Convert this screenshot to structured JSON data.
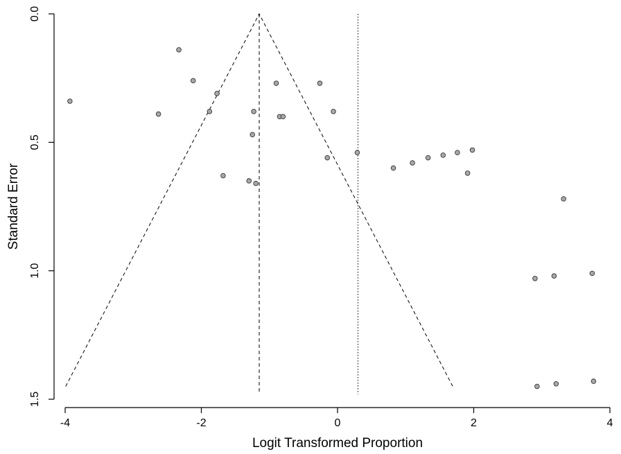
{
  "chart_data": {
    "type": "scatter",
    "title": "",
    "xlabel": "Logit Transformed Proportion",
    "ylabel": "Standard Error",
    "xlim": [
      -4,
      4
    ],
    "ylim": [
      0,
      1.5
    ],
    "y_reversed": true,
    "x_ticks": [
      -4,
      -2,
      0,
      2,
      4
    ],
    "x_tick_labels": [
      "-4",
      "-2",
      "0",
      "2",
      "4"
    ],
    "y_ticks": [
      0,
      0.5,
      1,
      1.5
    ],
    "y_tick_labels": [
      "0.0",
      "0.5",
      "1.0",
      "1.5"
    ],
    "grid": false,
    "legend": "none",
    "pooled_estimate": -1.15,
    "reference_line": 0.3,
    "funnel_max_se": 1.45,
    "points": [
      {
        "x": -3.93,
        "y": 0.34
      },
      {
        "x": -2.33,
        "y": 0.14
      },
      {
        "x": -2.63,
        "y": 0.39
      },
      {
        "x": -2.12,
        "y": 0.26
      },
      {
        "x": -1.77,
        "y": 0.31
      },
      {
        "x": -1.88,
        "y": 0.38
      },
      {
        "x": -1.68,
        "y": 0.63
      },
      {
        "x": -1.23,
        "y": 0.38
      },
      {
        "x": -1.25,
        "y": 0.47
      },
      {
        "x": -1.3,
        "y": 0.65
      },
      {
        "x": -1.2,
        "y": 0.66
      },
      {
        "x": -0.9,
        "y": 0.27
      },
      {
        "x": -0.85,
        "y": 0.4
      },
      {
        "x": -0.8,
        "y": 0.4
      },
      {
        "x": -0.26,
        "y": 0.27
      },
      {
        "x": -0.06,
        "y": 0.38
      },
      {
        "x": -0.15,
        "y": 0.56
      },
      {
        "x": 0.29,
        "y": 0.54
      },
      {
        "x": 0.82,
        "y": 0.6
      },
      {
        "x": 1.1,
        "y": 0.58
      },
      {
        "x": 1.33,
        "y": 0.56
      },
      {
        "x": 1.55,
        "y": 0.55
      },
      {
        "x": 1.76,
        "y": 0.54
      },
      {
        "x": 1.98,
        "y": 0.53
      },
      {
        "x": 1.91,
        "y": 0.62
      },
      {
        "x": 3.32,
        "y": 0.72
      },
      {
        "x": 2.9,
        "y": 1.03
      },
      {
        "x": 3.18,
        "y": 1.02
      },
      {
        "x": 3.74,
        "y": 1.01
      },
      {
        "x": 2.93,
        "y": 1.45
      },
      {
        "x": 3.21,
        "y": 1.44
      },
      {
        "x": 3.76,
        "y": 1.43
      }
    ]
  }
}
